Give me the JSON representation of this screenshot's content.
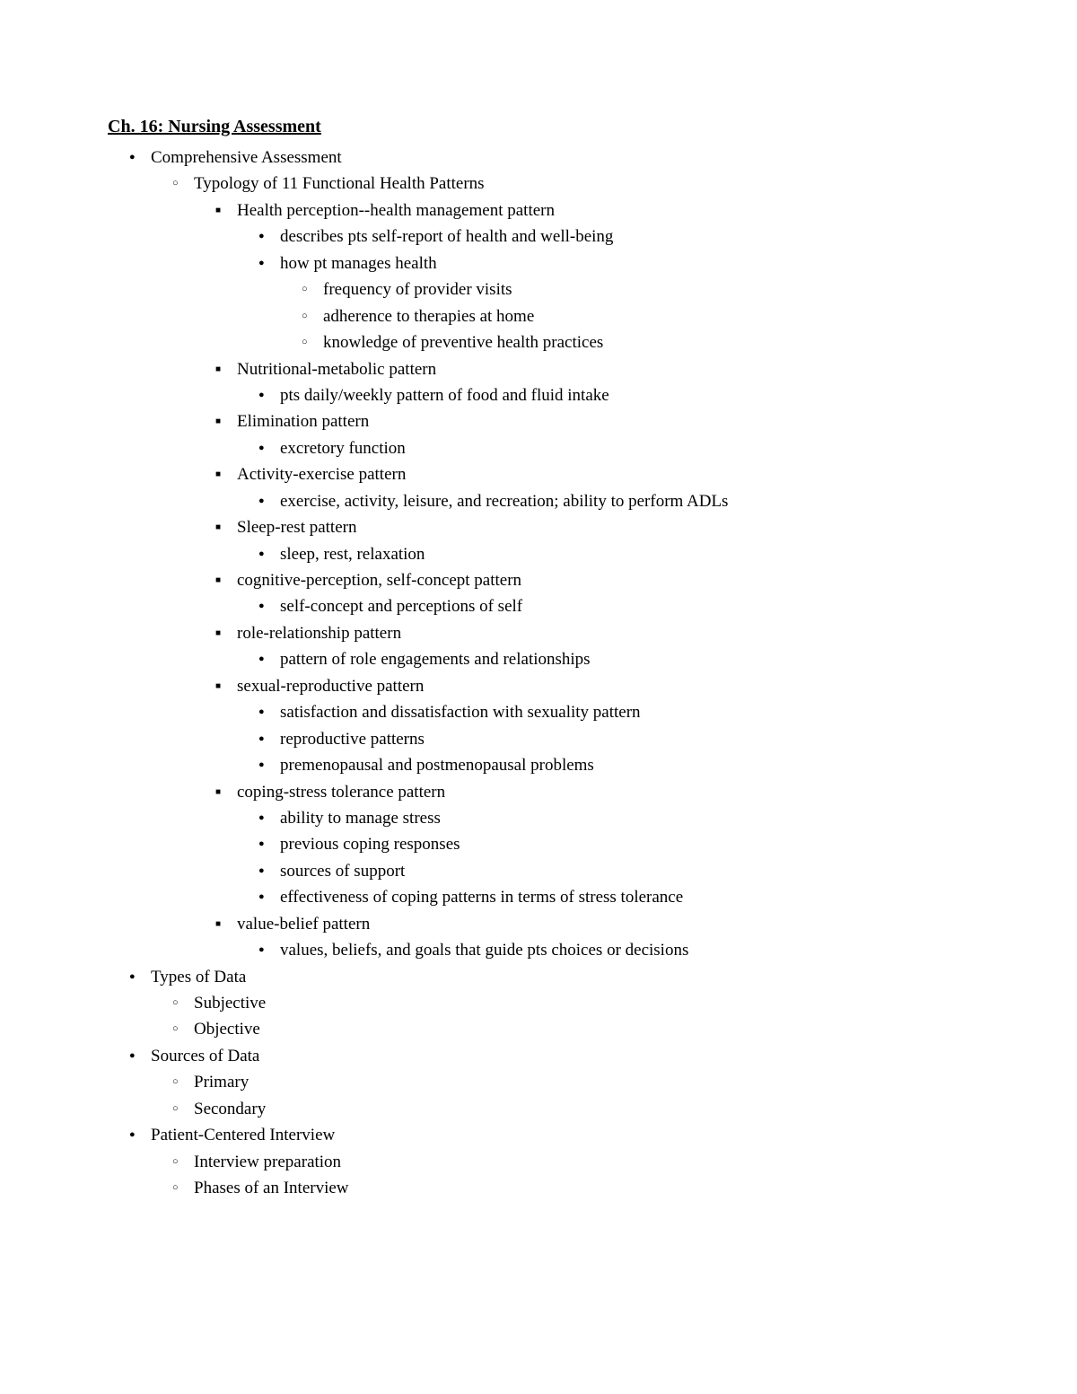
{
  "title": "Ch. 16: Nursing Assessment",
  "outline": [
    {
      "t": "Comprehensive Assessment",
      "c": [
        {
          "t": "Typology of 11 Functional Health Patterns",
          "c": [
            {
              "t": "Health perception--health management pattern",
              "c": [
                {
                  "t": "describes pts self-report of health and well-being"
                },
                {
                  "t": "how pt manages health",
                  "c": [
                    {
                      "t": "frequency of provider visits"
                    },
                    {
                      "t": "adherence to therapies at home"
                    },
                    {
                      "t": "knowledge of preventive health practices"
                    }
                  ]
                }
              ]
            },
            {
              "t": "Nutritional-metabolic pattern",
              "c": [
                {
                  "t": "pts daily/weekly pattern of food and fluid intake"
                }
              ]
            },
            {
              "t": "Elimination pattern",
              "c": [
                {
                  "t": "excretory function"
                }
              ]
            },
            {
              "t": "Activity-exercise pattern",
              "c": [
                {
                  "t": "exercise, activity, leisure, and recreation; ability to perform ADLs"
                }
              ]
            },
            {
              "t": "Sleep-rest pattern",
              "c": [
                {
                  "t": "sleep, rest, relaxation"
                }
              ]
            },
            {
              "t": "cognitive-perception, self-concept pattern",
              "c": [
                {
                  "t": "self-concept and perceptions of self"
                }
              ]
            },
            {
              "t": "role-relationship pattern",
              "c": [
                {
                  "t": "pattern of role engagements and relationships"
                }
              ]
            },
            {
              "t": "sexual-reproductive pattern",
              "c": [
                {
                  "t": "satisfaction and dissatisfaction with sexuality pattern"
                },
                {
                  "t": "reproductive patterns"
                },
                {
                  "t": "premenopausal and postmenopausal problems"
                }
              ]
            },
            {
              "t": "coping-stress tolerance pattern",
              "c": [
                {
                  "t": "ability to manage stress"
                },
                {
                  "t": "previous coping responses"
                },
                {
                  "t": "sources of support"
                },
                {
                  "t": "effectiveness of coping patterns in terms of stress tolerance"
                }
              ]
            },
            {
              "t": "value-belief pattern",
              "c": [
                {
                  "t": "values, beliefs, and goals that guide pts choices or decisions"
                }
              ]
            }
          ]
        }
      ]
    },
    {
      "t": "Types of Data",
      "c": [
        {
          "t": "Subjective"
        },
        {
          "t": "Objective"
        }
      ]
    },
    {
      "t": "Sources of Data",
      "c": [
        {
          "t": "Primary"
        },
        {
          "t": "Secondary"
        }
      ]
    },
    {
      "t": "Patient-Centered Interview",
      "c": [
        {
          "t": "Interview preparation"
        },
        {
          "t": "Phases of an Interview"
        }
      ]
    }
  ]
}
